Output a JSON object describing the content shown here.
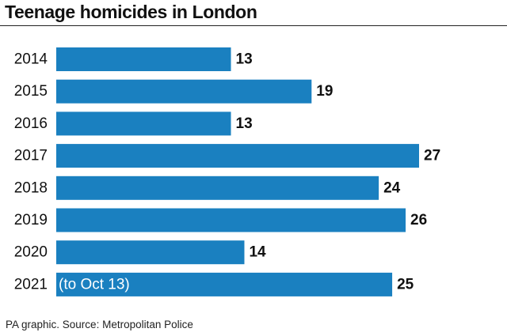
{
  "header": {
    "title": "Teenage homicides in London"
  },
  "footer": {
    "source": "PA graphic. Source: Metropolitan Police"
  },
  "colors": {
    "bar": "#1a80c0",
    "text": "#111111",
    "bar_note_text": "#ffffff"
  },
  "chart_data": {
    "type": "bar",
    "orientation": "horizontal",
    "title": "Teenage homicides in London",
    "categories": [
      "2014",
      "2015",
      "2016",
      "2017",
      "2018",
      "2019",
      "2020",
      "2021"
    ],
    "values": [
      13,
      19,
      13,
      27,
      24,
      26,
      14,
      25
    ],
    "annotations": [
      {
        "category": "2021",
        "text": "(to Oct 13)"
      }
    ],
    "xlabel": "",
    "ylabel": "",
    "xlim": [
      0,
      27
    ],
    "grid": false,
    "legend": "none"
  }
}
